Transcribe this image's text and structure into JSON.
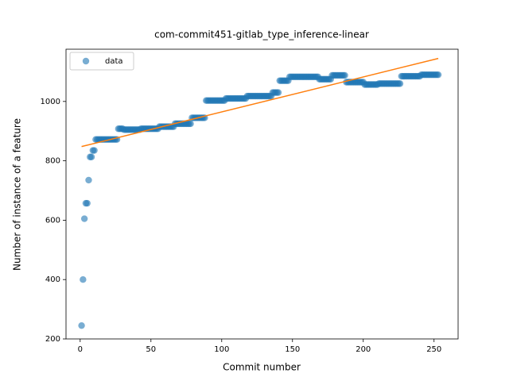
{
  "chart_data": {
    "type": "scatter",
    "title": "com-commit451-gitlab_type_inference-linear",
    "xlabel": "Commit number",
    "ylabel": "Number of instance of a feature",
    "xlim": [
      -10,
      267
    ],
    "ylim": [
      200,
      1176
    ],
    "xticks": [
      0,
      50,
      100,
      150,
      200,
      250
    ],
    "yticks": [
      200,
      400,
      600,
      800,
      1000
    ],
    "legend": "upper left",
    "series": [
      {
        "name": "data",
        "color": "#1f77b4",
        "x": [
          1,
          2,
          3,
          4,
          5,
          6,
          7,
          8,
          9,
          10,
          11,
          12,
          13,
          14,
          15,
          16,
          17,
          18,
          19,
          20,
          21,
          22,
          23,
          24,
          25,
          26,
          27,
          28,
          29,
          30,
          31,
          32,
          33,
          34,
          35,
          36,
          37,
          38,
          39,
          40,
          41,
          42,
          43,
          44,
          45,
          46,
          47,
          48,
          49,
          50,
          51,
          52,
          53,
          54,
          55,
          56,
          57,
          58,
          59,
          60,
          61,
          62,
          63,
          64,
          65,
          66,
          67,
          68,
          69,
          70,
          71,
          72,
          73,
          74,
          75,
          76,
          77,
          78,
          79,
          80,
          81,
          82,
          83,
          84,
          85,
          86,
          87,
          88,
          89,
          90,
          91,
          92,
          93,
          94,
          95,
          96,
          97,
          98,
          99,
          100,
          101,
          102,
          103,
          104,
          105,
          106,
          107,
          108,
          109,
          110,
          111,
          112,
          113,
          114,
          115,
          116,
          117,
          118,
          119,
          120,
          121,
          122,
          123,
          124,
          125,
          126,
          127,
          128,
          129,
          130,
          131,
          132,
          133,
          134,
          135,
          136,
          137,
          138,
          139,
          140,
          141,
          142,
          143,
          144,
          145,
          146,
          147,
          148,
          149,
          150,
          151,
          152,
          153,
          154,
          155,
          156,
          157,
          158,
          159,
          160,
          161,
          162,
          163,
          164,
          165,
          166,
          167,
          168,
          169,
          170,
          171,
          172,
          173,
          174,
          175,
          176,
          177,
          178,
          179,
          180,
          181,
          182,
          183,
          184,
          185,
          186,
          187,
          188,
          189,
          190,
          191,
          192,
          193,
          194,
          195,
          196,
          197,
          198,
          199,
          200,
          201,
          202,
          203,
          204,
          205,
          206,
          207,
          208,
          209,
          210,
          211,
          212,
          213,
          214,
          215,
          216,
          217,
          218,
          219,
          220,
          221,
          222,
          223,
          224,
          225,
          226,
          227,
          228,
          229,
          230,
          231,
          232,
          233,
          234,
          235,
          236,
          237,
          238,
          239,
          240,
          241,
          242,
          243,
          244,
          245,
          246,
          247,
          248,
          249,
          250,
          251,
          252,
          253
        ],
        "values": [
          245,
          400,
          605,
          657,
          657,
          735,
          813,
          813,
          835,
          835,
          872,
          872,
          872,
          872,
          872,
          872,
          872,
          872,
          872,
          872,
          872,
          872,
          872,
          872,
          872,
          872,
          908,
          908,
          908,
          908,
          905,
          905,
          905,
          905,
          905,
          905,
          905,
          905,
          905,
          905,
          905,
          905,
          908,
          908,
          908,
          908,
          908,
          908,
          908,
          908,
          908,
          908,
          908,
          908,
          908,
          915,
          915,
          915,
          915,
          915,
          915,
          915,
          915,
          915,
          915,
          915,
          925,
          925,
          925,
          925,
          925,
          925,
          925,
          925,
          925,
          925,
          925,
          925,
          945,
          945,
          945,
          945,
          945,
          945,
          945,
          945,
          945,
          945,
          1003,
          1003,
          1003,
          1003,
          1003,
          1003,
          1003,
          1003,
          1003,
          1003,
          1003,
          1003,
          1003,
          1003,
          1010,
          1010,
          1010,
          1010,
          1010,
          1010,
          1010,
          1010,
          1010,
          1010,
          1010,
          1010,
          1010,
          1010,
          1010,
          1018,
          1018,
          1018,
          1018,
          1018,
          1018,
          1018,
          1018,
          1018,
          1018,
          1018,
          1018,
          1018,
          1018,
          1018,
          1018,
          1018,
          1018,
          1030,
          1030,
          1030,
          1030,
          1030,
          1070,
          1070,
          1070,
          1070,
          1070,
          1070,
          1070,
          1083,
          1083,
          1083,
          1083,
          1083,
          1083,
          1083,
          1083,
          1083,
          1083,
          1083,
          1083,
          1083,
          1083,
          1083,
          1083,
          1083,
          1083,
          1083,
          1083,
          1083,
          1075,
          1075,
          1075,
          1075,
          1075,
          1075,
          1075,
          1075,
          1075,
          1088,
          1088,
          1088,
          1088,
          1088,
          1088,
          1088,
          1088,
          1088,
          1088,
          1065,
          1065,
          1065,
          1065,
          1065,
          1065,
          1065,
          1065,
          1065,
          1065,
          1065,
          1065,
          1065,
          1057,
          1057,
          1057,
          1057,
          1057,
          1057,
          1057,
          1057,
          1057,
          1057,
          1060,
          1060,
          1060,
          1060,
          1060,
          1060,
          1060,
          1060,
          1060,
          1060,
          1060,
          1060,
          1060,
          1060,
          1060,
          1060,
          1085,
          1085,
          1085,
          1085,
          1085,
          1085,
          1085,
          1085,
          1085,
          1085,
          1085,
          1085,
          1085,
          1085,
          1090,
          1090,
          1090,
          1090,
          1090,
          1090,
          1090,
          1090,
          1090,
          1090,
          1090,
          1090,
          1090
        ]
      }
    ],
    "fit": {
      "color": "#ff7f0e",
      "x": [
        1,
        253
      ],
      "values": [
        848,
        1145
      ]
    }
  }
}
